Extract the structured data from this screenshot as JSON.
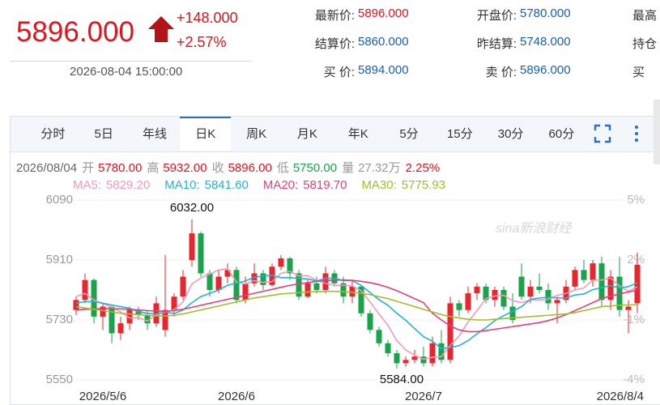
{
  "quote": {
    "price": "5896.000",
    "change": "+148.000",
    "percent": "+2.57%",
    "time": "2026-08-04 15:00:00",
    "fields": [
      [
        {
          "label": "最新价:",
          "value": "5896.000",
          "color": "#e0141e"
        },
        {
          "label": "开盘价:",
          "value": "5780.000",
          "color": "#1a5db8"
        },
        {
          "label": "最高"
        }
      ],
      [
        {
          "label": "结算价:",
          "value": "5860.000",
          "color": "#1a5db8"
        },
        {
          "label": "昨结算:",
          "value": "5748.000",
          "color": "#1a5db8"
        },
        {
          "label": "持仓"
        }
      ],
      [
        {
          "label": "买 价:",
          "value": "5894.000",
          "color": "#1a5db8"
        },
        {
          "label": "卖 价:",
          "value": "5896.000",
          "color": "#1a5db8"
        },
        {
          "label": "买"
        }
      ]
    ]
  },
  "tabs": {
    "items": [
      "分时",
      "5日",
      "年线",
      "日K",
      "周K",
      "月K",
      "年K",
      "5分",
      "15分",
      "30分",
      "60分"
    ],
    "active": 3
  },
  "info": {
    "date": "2026/08/04",
    "items": [
      {
        "label": "开",
        "value": "5780.00",
        "color": "#e0141e"
      },
      {
        "label": "高",
        "value": "5932.00",
        "color": "#e0141e"
      },
      {
        "label": "收",
        "value": "5896.00",
        "color": "#e0141e"
      },
      {
        "label": "低",
        "value": "5750.00",
        "color": "#1aa34a"
      },
      {
        "label": "量",
        "value": "27.32万",
        "color": "#999999"
      },
      {
        "label": "2.25%",
        "color": "#e0141e"
      }
    ]
  },
  "chart_data": {
    "type": "candlestick",
    "watermark": "sina新浪财经",
    "categories": [
      null,
      null,
      null,
      "2026/5/6",
      null,
      null,
      null,
      null,
      null,
      null,
      null,
      null,
      null,
      null,
      null,
      null,
      null,
      null,
      "2026/6",
      null,
      null,
      null,
      null,
      null,
      null,
      null,
      null,
      null,
      null,
      null,
      null,
      null,
      null,
      null,
      null,
      null,
      null,
      null,
      null,
      "2026/7",
      null,
      null,
      null,
      null,
      null,
      null,
      null,
      null,
      null,
      null,
      null,
      null,
      null,
      null,
      null,
      null,
      null,
      null,
      null,
      null,
      null,
      null,
      null,
      "2026/8/4"
    ],
    "open": [
      5760,
      5790,
      5850,
      5740,
      5770,
      5690,
      5720,
      5760,
      5745,
      5720,
      5700,
      5760,
      5800,
      5910,
      5990,
      5870,
      5820,
      5860,
      5880,
      5790,
      5840,
      5870,
      5835,
      5890,
      5915,
      5870,
      5800,
      5840,
      5820,
      5870,
      5840,
      5800,
      5830,
      5750,
      5700,
      5660,
      5630,
      5600,
      5610,
      5620,
      5600,
      5660,
      5610,
      5780,
      5760,
      5810,
      5830,
      5790,
      5820,
      5770,
      5860,
      5800,
      5830,
      5820,
      5780,
      5790,
      5830,
      5880,
      5850,
      5900,
      5790,
      5860,
      5760,
      5780
    ],
    "high": [
      5800,
      5870,
      5855,
      5780,
      5775,
      5740,
      5770,
      5770,
      5760,
      5800,
      5925,
      5810,
      5880,
      6032,
      5995,
      5880,
      5880,
      5900,
      5890,
      5860,
      5900,
      5880,
      5900,
      5925,
      5920,
      5880,
      5850,
      5860,
      5890,
      5880,
      5860,
      5850,
      5835,
      5760,
      5710,
      5670,
      5640,
      5620,
      5640,
      5650,
      5680,
      5700,
      5800,
      5790,
      5830,
      5840,
      5840,
      5830,
      5830,
      5810,
      5900,
      5850,
      5870,
      5840,
      5800,
      5850,
      5890,
      5910,
      5910,
      5920,
      5880,
      5920,
      5790,
      5932
    ],
    "low": [
      5745,
      5780,
      5720,
      5700,
      5660,
      5670,
      5700,
      5730,
      5700,
      5710,
      5680,
      5740,
      5790,
      5890,
      5860,
      5800,
      5810,
      5840,
      5780,
      5780,
      5830,
      5820,
      5830,
      5880,
      5850,
      5790,
      5795,
      5810,
      5810,
      5830,
      5780,
      5780,
      5740,
      5690,
      5650,
      5620,
      5584,
      5590,
      5600,
      5590,
      5590,
      5600,
      5600,
      5740,
      5750,
      5790,
      5780,
      5770,
      5760,
      5720,
      5790,
      5780,
      5810,
      5760,
      5720,
      5780,
      5820,
      5840,
      5830,
      5770,
      5760,
      5740,
      5690,
      5750
    ],
    "close": [
      5790,
      5850,
      5740,
      5770,
      5690,
      5720,
      5760,
      5745,
      5720,
      5780,
      5760,
      5800,
      5860,
      5990,
      5870,
      5820,
      5860,
      5880,
      5790,
      5840,
      5870,
      5835,
      5890,
      5915,
      5870,
      5800,
      5840,
      5820,
      5870,
      5840,
      5800,
      5830,
      5750,
      5700,
      5660,
      5630,
      5600,
      5610,
      5620,
      5600,
      5660,
      5610,
      5780,
      5760,
      5810,
      5830,
      5790,
      5820,
      5770,
      5730,
      5800,
      5830,
      5820,
      5780,
      5790,
      5830,
      5880,
      5850,
      5900,
      5790,
      5860,
      5760,
      5770,
      5896
    ],
    "up_color": "#e8262d",
    "down_color": "#1aa34a",
    "high_label": "6032.00",
    "low_label": "5584.00",
    "series": [
      {
        "name": "MA5:",
        "color": "#f29bb6",
        "value_label": "5829.20",
        "values": [
          5800,
          5810,
          5790,
          5780,
          5768,
          5754,
          5736,
          5737,
          5727,
          5745,
          5753,
          5761,
          5784,
          5838,
          5856,
          5868,
          5880,
          5884,
          5844,
          5838,
          5848,
          5843,
          5845,
          5870,
          5876,
          5862,
          5863,
          5849,
          5840,
          5834,
          5834,
          5832,
          5818,
          5784,
          5748,
          5714,
          5668,
          5640,
          5624,
          5612,
          5618,
          5620,
          5654,
          5682,
          5724,
          5758,
          5794,
          5802,
          5804,
          5788,
          5782,
          5790,
          5790,
          5792,
          5804,
          5810,
          5820,
          5826,
          5850,
          5850,
          5856,
          5832,
          5816,
          5829.2
        ]
      },
      {
        "name": "MA10:",
        "color": "#22b4d6",
        "value_label": "5841.60",
        "values": [
          5780,
          5785,
          5785,
          5780,
          5775,
          5770,
          5765,
          5755,
          5750,
          5748,
          5754,
          5749,
          5760,
          5782,
          5800,
          5810,
          5820,
          5834,
          5841,
          5847,
          5858,
          5862,
          5864,
          5857,
          5857,
          5855,
          5853,
          5847,
          5855,
          5855,
          5848,
          5848,
          5834,
          5812,
          5791,
          5774,
          5750,
          5729,
          5704,
          5680,
          5666,
          5644,
          5647,
          5653,
          5668,
          5688,
          5707,
          5728,
          5743,
          5756,
          5770,
          5792,
          5796,
          5798,
          5796,
          5796,
          5805,
          5808,
          5821,
          5827,
          5833,
          5826,
          5830,
          5841.6
        ]
      },
      {
        "name": "MA20:",
        "color": "#e2407c",
        "value_label": "5819.70",
        "values": [
          5760,
          5762,
          5763,
          5764,
          5764,
          5763,
          5762,
          5760,
          5758,
          5757,
          5756,
          5758,
          5762,
          5768,
          5774,
          5780,
          5786,
          5792,
          5798,
          5804,
          5810,
          5816,
          5822,
          5828,
          5834,
          5838,
          5842,
          5846,
          5848,
          5850,
          5850,
          5849,
          5846,
          5842,
          5836,
          5828,
          5818,
          5806,
          5794,
          5782,
          5750,
          5730,
          5712,
          5700,
          5695,
          5695,
          5698,
          5702,
          5706,
          5710,
          5714,
          5718,
          5722,
          5728,
          5736,
          5746,
          5758,
          5770,
          5782,
          5794,
          5802,
          5808,
          5814,
          5819.7
        ]
      },
      {
        "name": "MA30:",
        "color": "#a3bd2c",
        "value_label": "5775.93",
        "values": [
          5770,
          5766,
          5762,
          5758,
          5754,
          5750,
          5748,
          5746,
          5744,
          5742,
          5742,
          5744,
          5748,
          5754,
          5760,
          5766,
          5772,
          5778,
          5784,
          5790,
          5796,
          5800,
          5804,
          5808,
          5810,
          5812,
          5814,
          5815,
          5816,
          5816,
          5815,
          5813,
          5810,
          5806,
          5800,
          5794,
          5786,
          5778,
          5770,
          5762,
          5754,
          5746,
          5740,
          5736,
          5732,
          5730,
          5730,
          5732,
          5734,
          5736,
          5738,
          5740,
          5742,
          5744,
          5746,
          5748,
          5752,
          5758,
          5764,
          5770,
          5772,
          5774,
          5775,
          5775.93
        ]
      }
    ],
    "ylim": [
      5550,
      6090
    ],
    "yticks": [
      6090,
      5910,
      5730,
      5550
    ],
    "y2lim": [
      -4,
      5
    ],
    "y2ticks": [
      {
        "value": 5,
        "label": "5%"
      },
      {
        "value": 2,
        "label": "2%"
      },
      {
        "value": -1,
        "label": "-1%"
      },
      {
        "value": -4,
        "label": "-4%"
      }
    ],
    "grid": true
  }
}
